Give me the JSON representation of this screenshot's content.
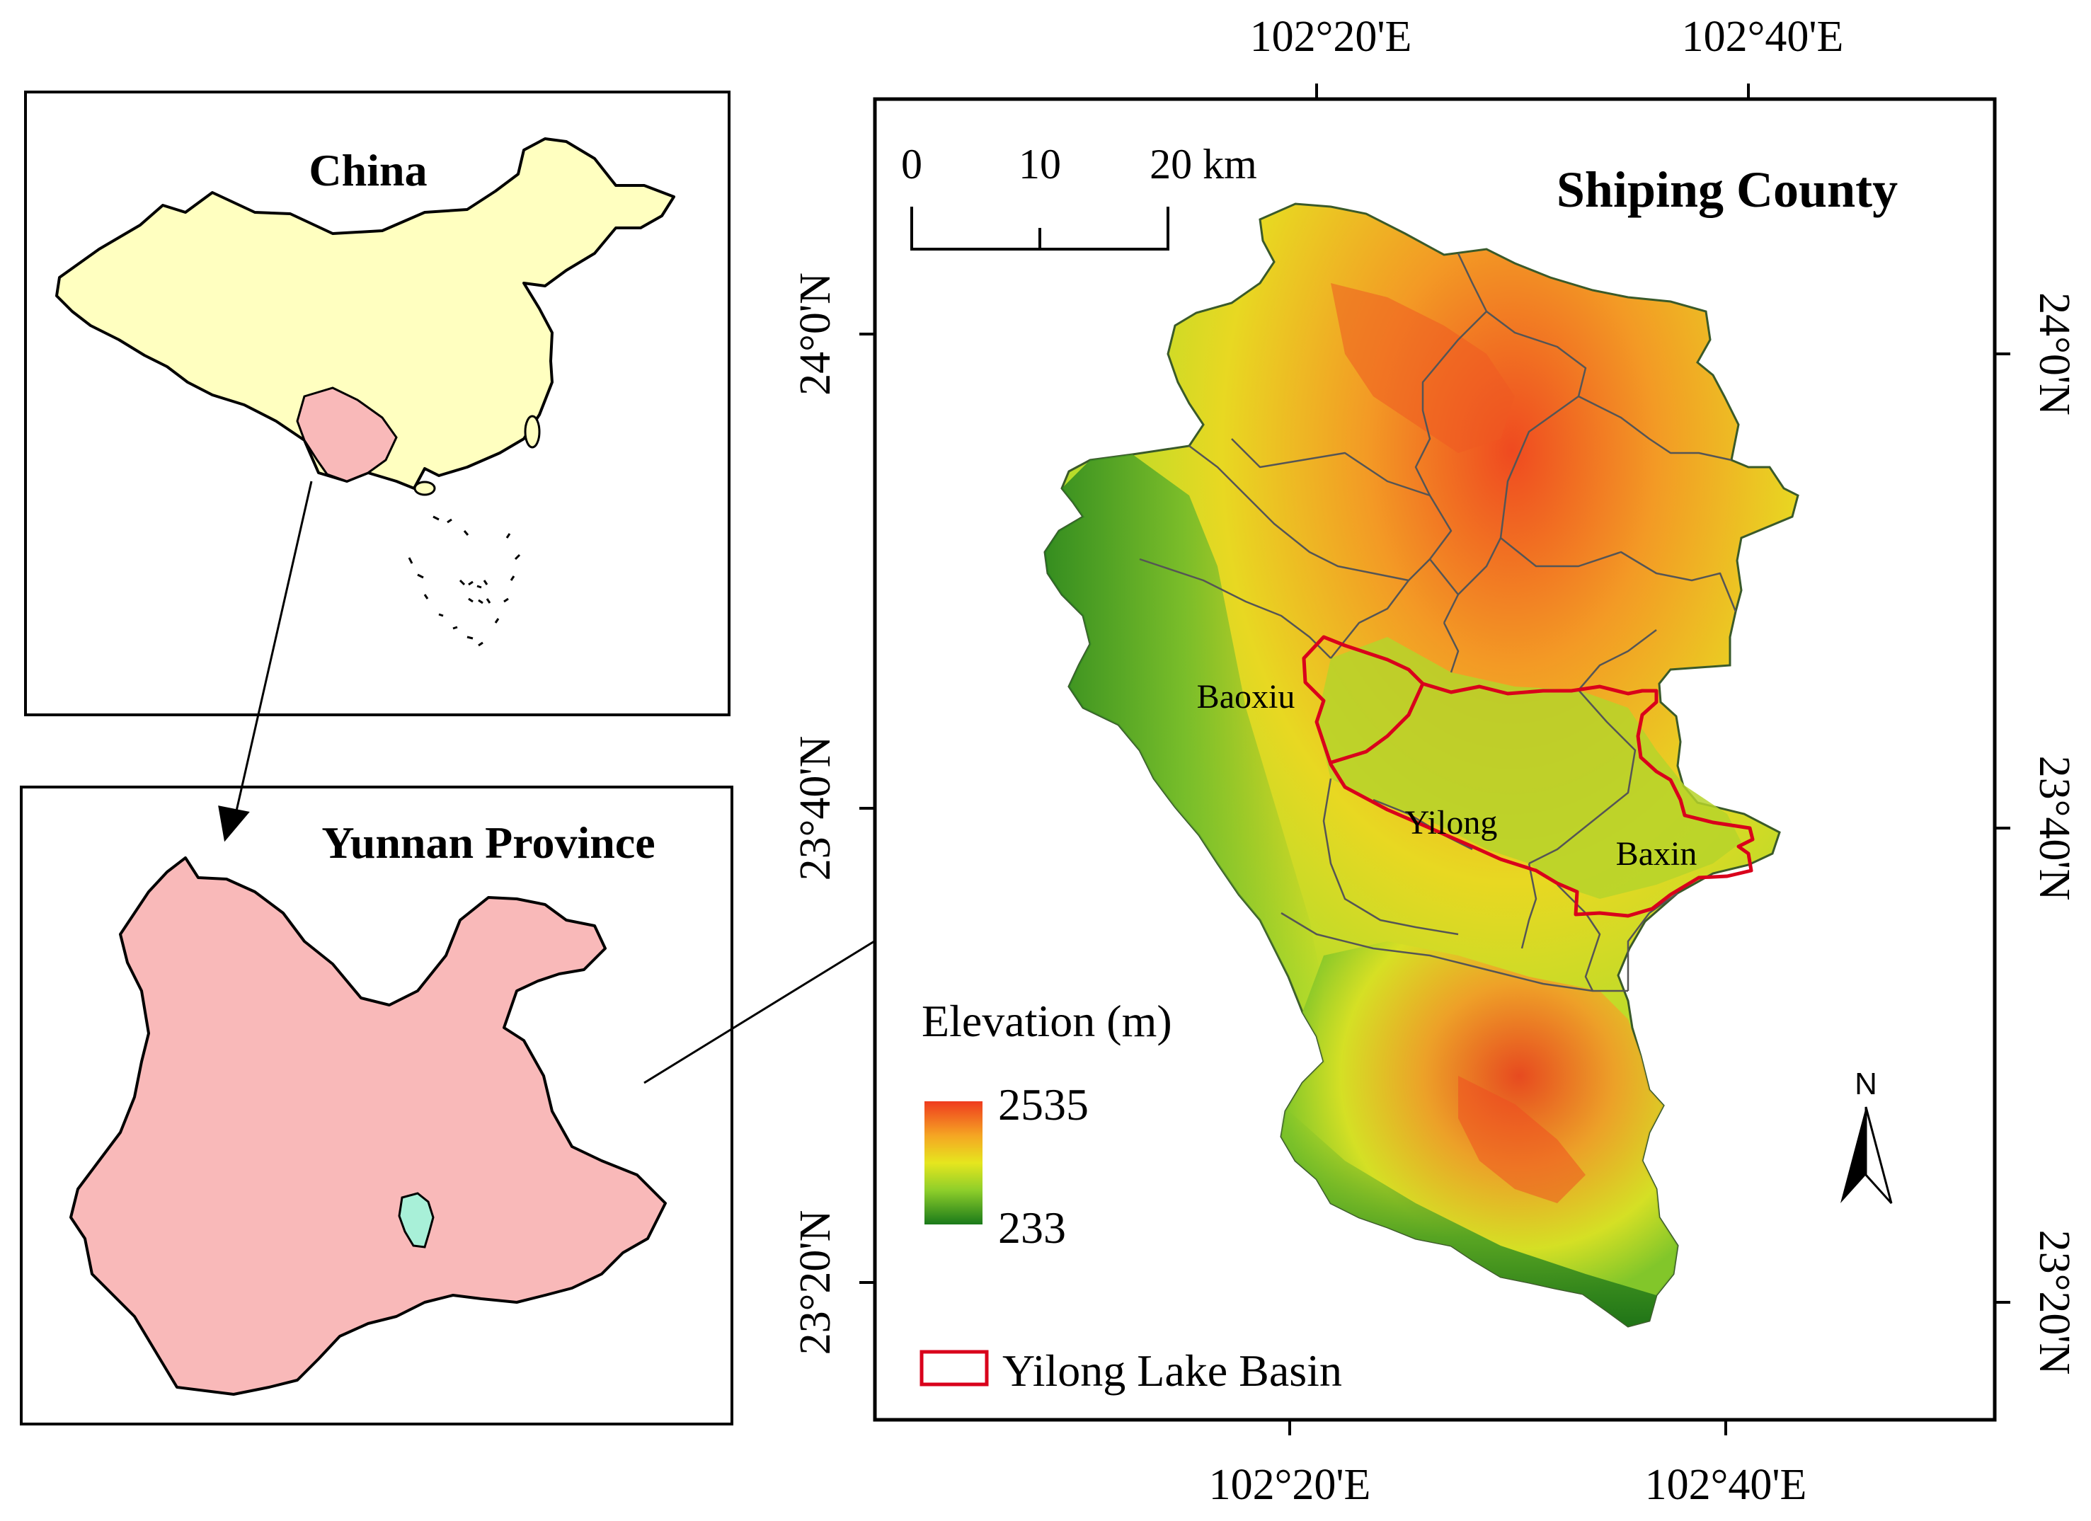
{
  "china_panel": {
    "title": "China"
  },
  "yunnan_panel": {
    "title": "Yunnan Province"
  },
  "main_map": {
    "title": "Shiping County",
    "top_ticks": [
      "102°20'E",
      "102°40'E"
    ],
    "bottom_ticks": [
      "102°20'E",
      "102°40'E"
    ],
    "left_ticks": [
      "24°0'N",
      "23°40'N",
      "23°20'N"
    ],
    "right_ticks": [
      "24°0'N",
      "23°40'N",
      "23°20'N"
    ],
    "scale_bar": {
      "labels": [
        "0",
        "10",
        "20 km"
      ]
    },
    "places": [
      "Baoxiu",
      "Yilong",
      "Baxin"
    ],
    "north_label": "N"
  },
  "legend": {
    "elevation_title": "Elevation (m)",
    "elevation_max": "2535",
    "elevation_min": "233",
    "basin_label": "Yilong Lake Basin"
  },
  "colors": {
    "china_fill": "#ffffc0",
    "yunnan_fill": "#f9b9b9",
    "shiping_fill": "#a8f0d8",
    "basin_outline": "#d9001b",
    "elev_high": "#ef3b1f",
    "elev_mid_high": "#f5a623",
    "elev_mid": "#e6e61e",
    "elev_mid_low": "#8fcf2a",
    "elev_low": "#1a7a1a"
  }
}
